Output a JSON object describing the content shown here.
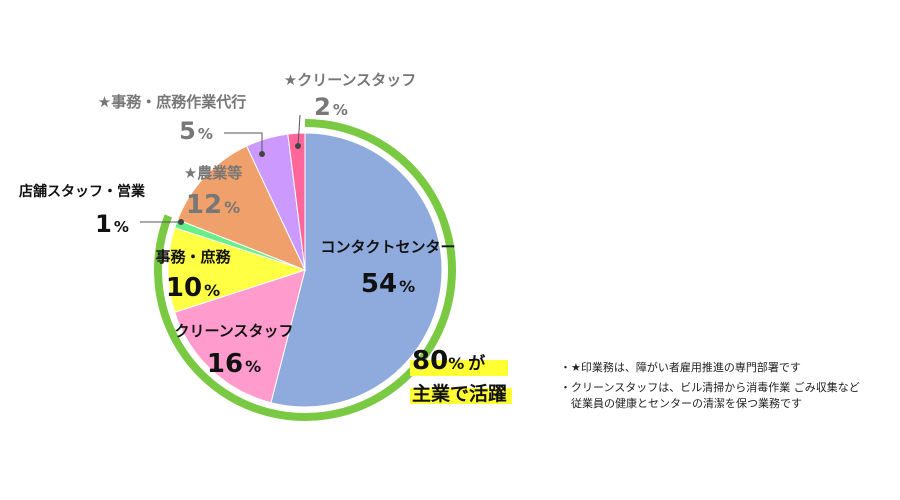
{
  "chart_data": {
    "type": "pie",
    "slices": [
      {
        "label": "コンタクトセンター",
        "value": 54,
        "value_text": "54",
        "color": "#8faadc"
      },
      {
        "label": "クリーンスタッフ",
        "value": 16,
        "value_text": "16",
        "color": "#ff9ccd"
      },
      {
        "label": "事務・庶務",
        "value": 10,
        "value_text": "10",
        "color": "#ffff44"
      },
      {
        "label": "店舗スタッフ・営業",
        "value": 1,
        "value_text": "1",
        "color": "#66ee88"
      },
      {
        "label": "★農業等",
        "value": 12,
        "value_text": "12",
        "color": "#f0a06a"
      },
      {
        "label": "★事務・庶務作業代行",
        "value": 5,
        "value_text": "5",
        "color": "#cc99ff"
      },
      {
        "label": "★クリーンスタッフ",
        "value": 2,
        "value_text": "2",
        "color": "#ff6699"
      }
    ],
    "unit": "%",
    "highlight": {
      "value_text": "80",
      "unit": "%",
      "suffix": "が",
      "line2": "主業で活躍",
      "color": "#7ac943",
      "marker": "#ffff33"
    }
  },
  "notes": [
    "・★印業務は、障がい者雇用推進の専門部署です",
    "・クリーンスタッフは、ビル清掃から消毒作業 ごみ収集など",
    "　従業員の健康とセンターの清潔を保つ業務です"
  ],
  "colors": {
    "label_dark": "#111111",
    "label_grey": "#777777",
    "leader": "#555555"
  }
}
